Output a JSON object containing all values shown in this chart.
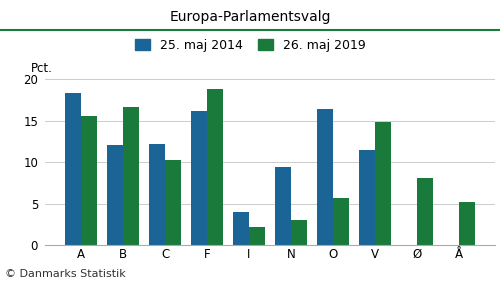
{
  "title": "Europa-Parlamentsvalg",
  "categories": [
    "A",
    "B",
    "C",
    "F",
    "I",
    "N",
    "O",
    "V",
    "Ø",
    "Å"
  ],
  "series": [
    {
      "label": "25. maj 2014",
      "color": "#1a6496",
      "values": [
        18.3,
        12.1,
        12.2,
        16.1,
        4.0,
        9.4,
        16.4,
        11.5,
        0.0,
        0.0
      ]
    },
    {
      "label": "26. maj 2019",
      "color": "#1a7a3c",
      "values": [
        15.5,
        16.6,
        10.2,
        18.8,
        2.2,
        3.0,
        5.7,
        14.8,
        8.1,
        5.2
      ]
    }
  ],
  "ylabel": "Pct.",
  "ylim": [
    0,
    20
  ],
  "yticks": [
    0,
    5,
    10,
    15,
    20
  ],
  "footnote": "© Danmarks Statistik",
  "title_color": "#000000",
  "bg_color": "#ffffff",
  "bar_width": 0.38,
  "title_fontsize": 10,
  "legend_fontsize": 9,
  "axis_fontsize": 8.5,
  "ylabel_fontsize": 8.5,
  "footnote_fontsize": 8,
  "green_line_color": "#1a7a3c"
}
